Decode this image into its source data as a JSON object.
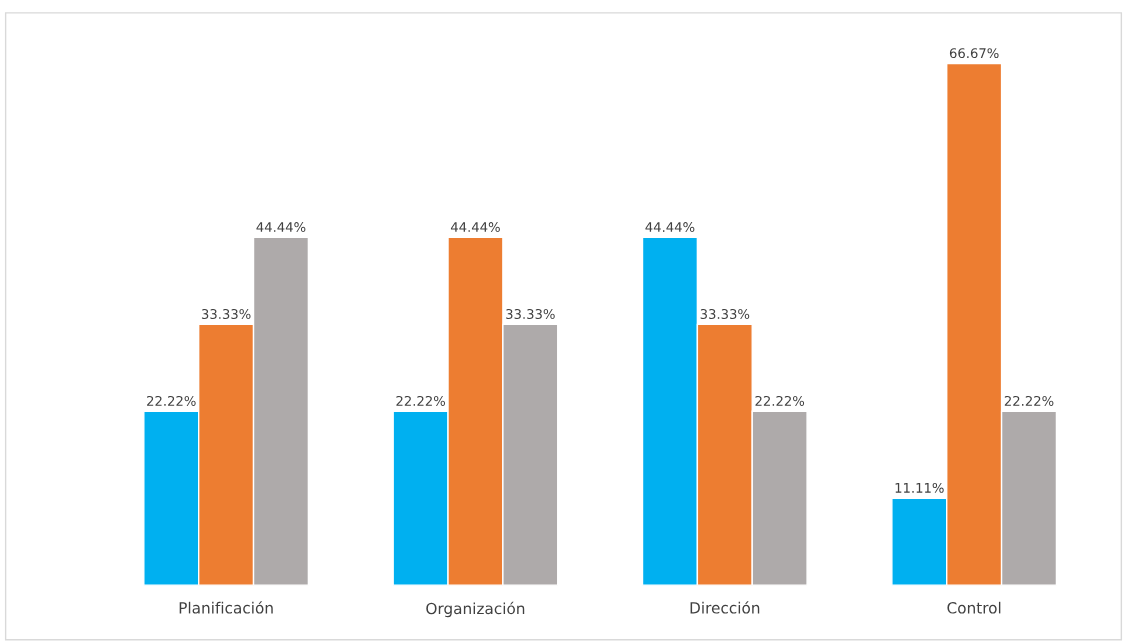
{
  "chart_data": {
    "type": "bar",
    "categories": [
      "Planificación",
      "Organización",
      "Dirección",
      "Control"
    ],
    "series": [
      {
        "color": "#00b0f0",
        "values": [
          22.22,
          22.22,
          44.44,
          11.11
        ],
        "value_labels": [
          "22.22%",
          "22.22%",
          "44.44%",
          "11.11%"
        ]
      },
      {
        "color": "#ed7d31",
        "values": [
          33.33,
          44.44,
          33.33,
          66.67
        ],
        "value_labels": [
          "33.33%",
          "44.44%",
          "33.33%",
          "66.67%"
        ]
      },
      {
        "color": "#aeaaaa",
        "values": [
          44.44,
          33.33,
          22.22,
          22.22
        ],
        "value_labels": [
          "44.44%",
          "33.33%",
          "22.22%",
          "22.22%"
        ]
      }
    ]
  }
}
